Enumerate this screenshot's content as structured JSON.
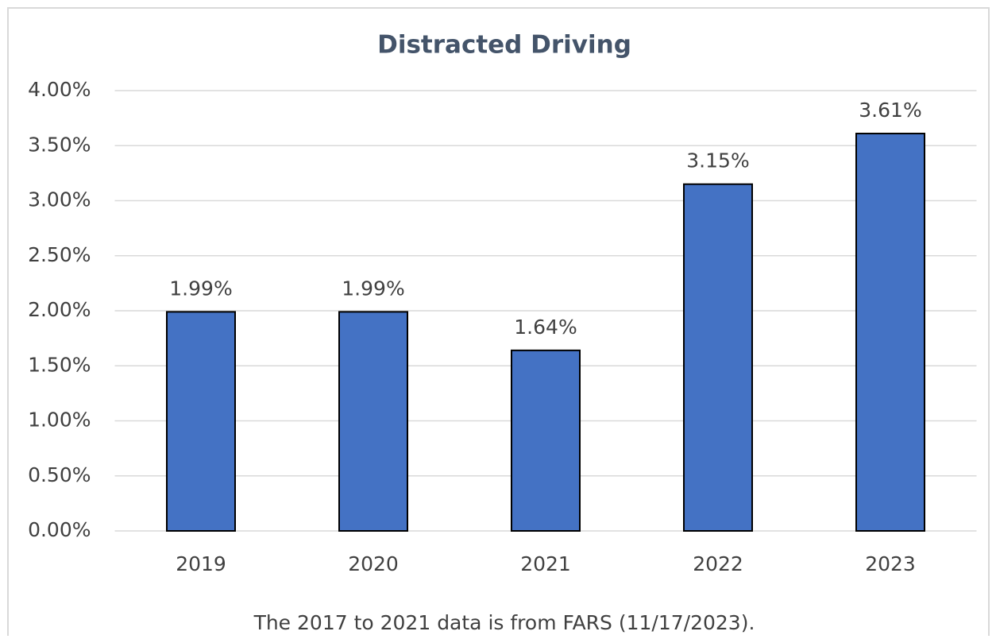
{
  "chart_data": {
    "type": "bar",
    "title": "Distracted Driving",
    "footnote": "The 2017 to 2021 data is from FARS (11/17/2023).",
    "categories": [
      "2019",
      "2020",
      "2021",
      "2022",
      "2023"
    ],
    "values": [
      1.99,
      1.99,
      1.64,
      3.15,
      3.61
    ],
    "value_labels": [
      "1.99%",
      "1.99%",
      "1.64%",
      "3.15%",
      "3.61%"
    ],
    "color": "#4472c4",
    "ylim": [
      0,
      4
    ],
    "yticks": [
      {
        "value": 0,
        "label": "0.00%"
      },
      {
        "value": 0.5,
        "label": "0.50%"
      },
      {
        "value": 1,
        "label": "1.00%"
      },
      {
        "value": 1.5,
        "label": "1.50%"
      },
      {
        "value": 2,
        "label": "2.00%"
      },
      {
        "value": 2.5,
        "label": "2.50%"
      },
      {
        "value": 3,
        "label": "3.00%"
      },
      {
        "value": 3.5,
        "label": "3.50%"
      },
      {
        "value": 4,
        "label": "4.00%"
      }
    ],
    "grid": true
  }
}
